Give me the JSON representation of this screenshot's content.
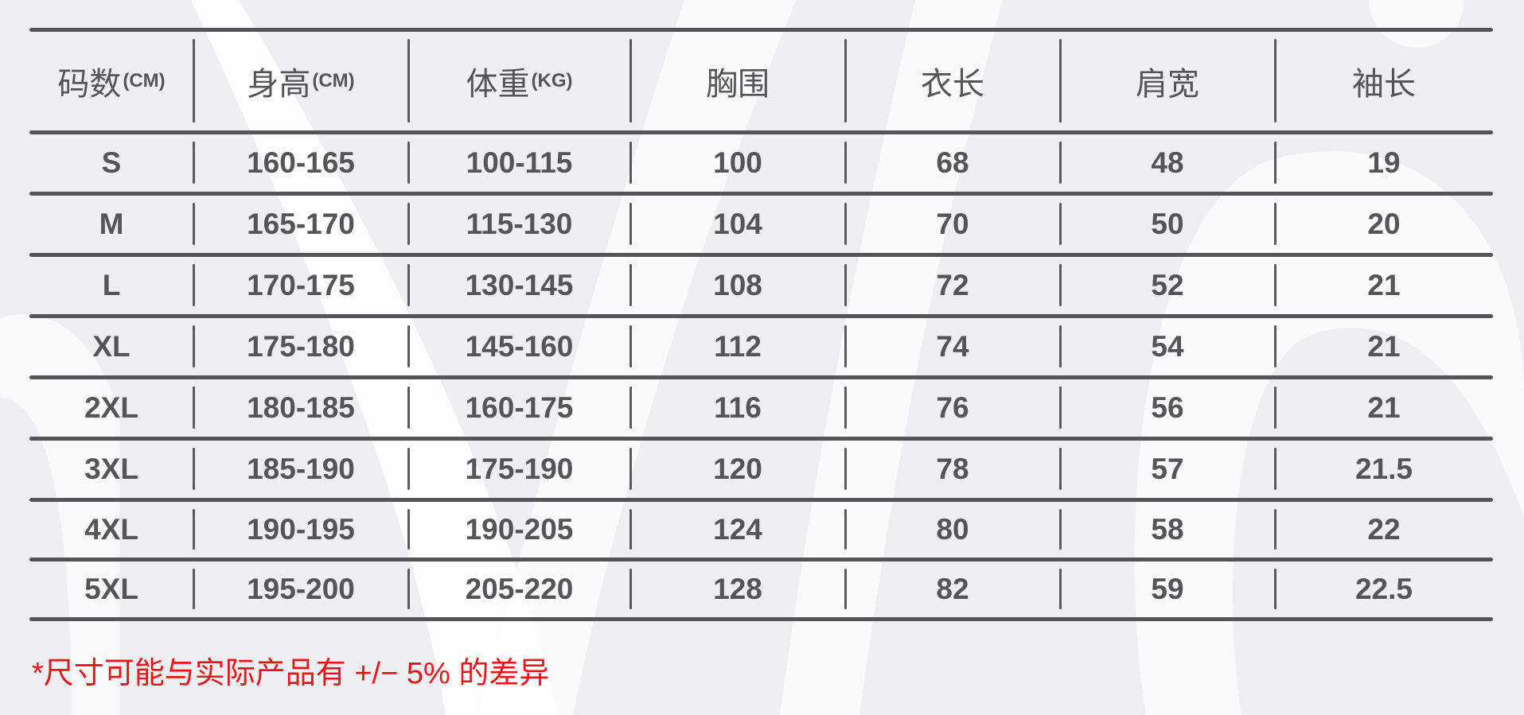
{
  "table": {
    "headers": [
      {
        "label": "码数",
        "unit": "(CM)"
      },
      {
        "label": "身高",
        "unit": "(CM)"
      },
      {
        "label": "体重",
        "unit": "(KG)"
      },
      {
        "label": "胸围",
        "unit": ""
      },
      {
        "label": "衣长",
        "unit": ""
      },
      {
        "label": "肩宽",
        "unit": ""
      },
      {
        "label": "袖长",
        "unit": ""
      }
    ],
    "rows": [
      [
        "S",
        "160-165",
        "100-115",
        "100",
        "68",
        "48",
        "19"
      ],
      [
        "M",
        "165-170",
        "115-130",
        "104",
        "70",
        "50",
        "20"
      ],
      [
        "L",
        "170-175",
        "130-145",
        "108",
        "72",
        "52",
        "21"
      ],
      [
        "XL",
        "175-180",
        "145-160",
        "112",
        "74",
        "54",
        "21"
      ],
      [
        "2XL",
        "180-185",
        "160-175",
        "116",
        "76",
        "56",
        "21"
      ],
      [
        "3XL",
        "185-190",
        "175-190",
        "120",
        "78",
        "57",
        "21.5"
      ],
      [
        "4XL",
        "190-195",
        "190-205",
        "124",
        "80",
        "58",
        "22"
      ],
      [
        "5XL",
        "195-200",
        "205-220",
        "128",
        "82",
        "59",
        "22.5"
      ]
    ]
  },
  "footnote": "*尺寸可能与实际产品有 +/− 5% 的差异",
  "colors": {
    "text": "#555558",
    "lines": "#555558",
    "footnote": "#e8161b",
    "background": "#efeff1"
  }
}
